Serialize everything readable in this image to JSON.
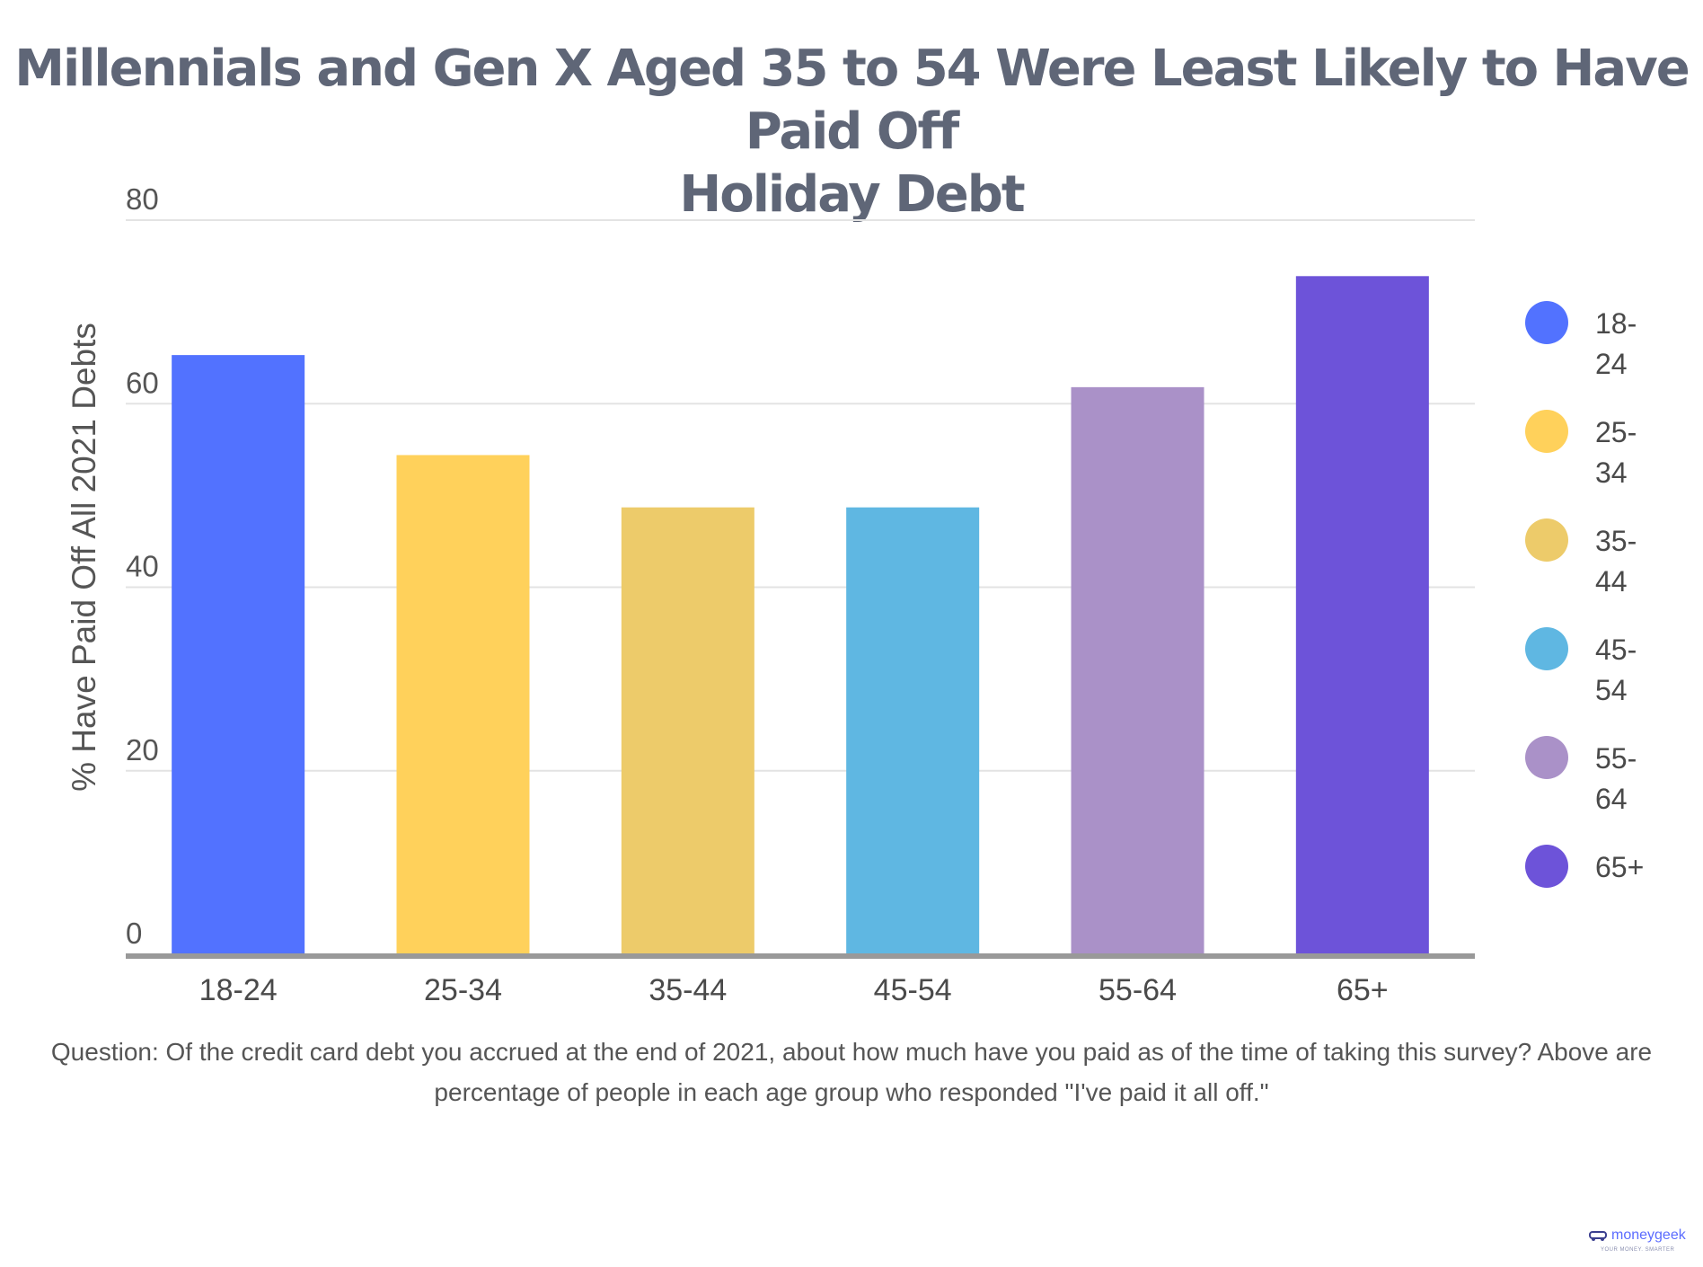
{
  "chart_data": {
    "type": "bar",
    "title_lines": [
      "Millennials and Gen X Aged 35 to 54 Were Least Likely to Have Paid Off",
      "Holiday Debt"
    ],
    "ylabel": "% Have Paid Off All 2021 Debts",
    "xlabel": "",
    "ylim": [
      0,
      80
    ],
    "yticks": [
      "0",
      "20",
      "40",
      "60",
      "80"
    ],
    "categories": [
      "18-24",
      "25-34",
      "35-44",
      "45-54",
      "55-64",
      "65+"
    ],
    "values": [
      65.3,
      54.4,
      48.7,
      48.7,
      61.8,
      73.9
    ],
    "colors": [
      "#5272ff",
      "#ffd15b",
      "#edcb6a",
      "#5fb7e2",
      "#aa91c8",
      "#6d53d9"
    ],
    "grid": true,
    "legend_position": "right",
    "legend": [
      {
        "line1": "18-",
        "line2": "24"
      },
      {
        "line1": "25-",
        "line2": "34"
      },
      {
        "line1": "35-",
        "line2": "44"
      },
      {
        "line1": "45-",
        "line2": "54"
      },
      {
        "line1": "55-",
        "line2": "64"
      },
      {
        "line1": "65+",
        "line2": ""
      }
    ]
  },
  "footnote": "Question: Of the credit card debt you accrued at the end of 2021, about how much have you paid as of the time of taking this survey? Above are percentage of people in each age group who responded \"I've paid it all off.\"",
  "logo": {
    "name": "moneygeek",
    "tagline": "YOUR MONEY. SMARTER"
  }
}
